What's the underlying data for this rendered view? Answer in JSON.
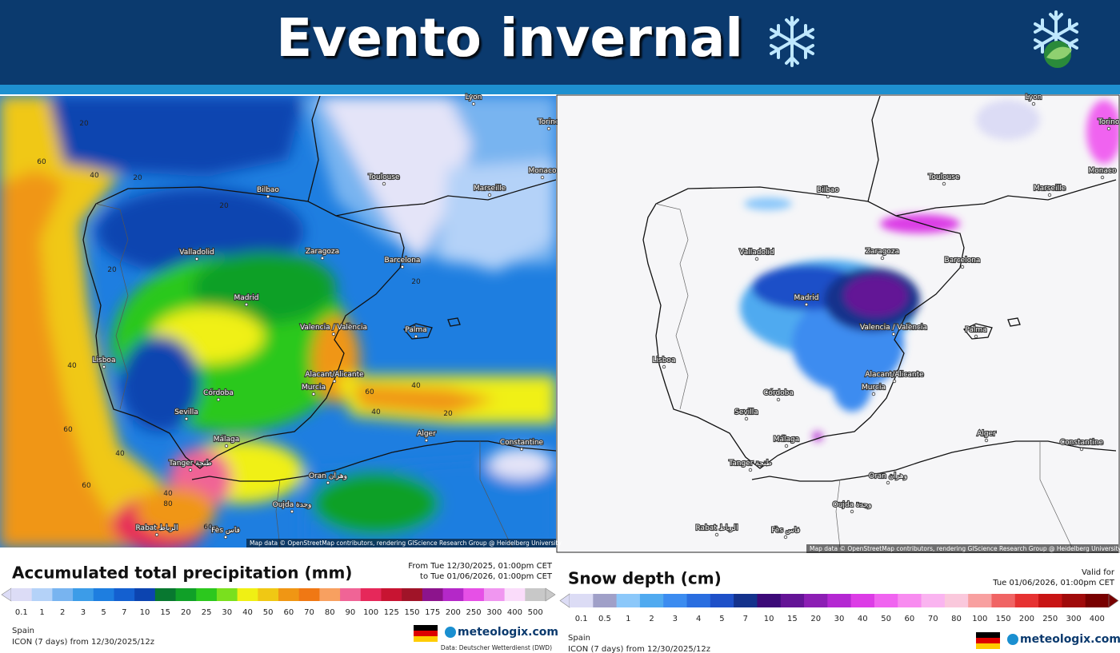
{
  "header": {
    "title": "Evento invernal"
  },
  "maps": [
    {
      "cities": [
        "Lyon",
        "Torino",
        "Toulouse",
        "Monaco",
        "Marseille",
        "Bilbao",
        "Valladolid",
        "Zaragoza",
        "Barcelona",
        "Madrid",
        "Palma",
        "Valencia / València",
        "Lisboa",
        "Alacant/Alicante",
        "Murcia",
        "Córdoba",
        "Sevilla",
        "Málaga",
        "Alger",
        "Constantine",
        "Tanger طنجة",
        "Oran وهران",
        "Oujda وجدة",
        "Rabat الرباط",
        "Fès فاس"
      ],
      "contours": [
        "20",
        "20",
        "40",
        "60",
        "20",
        "20",
        "40",
        "60",
        "40",
        "60",
        "40",
        "20",
        "40",
        "60",
        "80",
        "60",
        "40",
        "20"
      ],
      "credit": "Map data © OpenStreetMap contributors, rendering GIScience Research Group @ Heidelberg University",
      "legend": {
        "title": "Accumulated total precipitation (mm)",
        "time_from": "From Tue 12/30/2025, 01:00pm CET",
        "time_to": "to Tue 01/06/2026, 01:00pm CET",
        "scale": [
          0.1,
          1,
          2,
          3,
          5,
          7,
          10,
          15,
          20,
          25,
          30,
          40,
          50,
          60,
          70,
          80,
          90,
          100,
          125,
          150,
          175,
          200,
          250,
          300,
          400,
          500
        ],
        "colors": [
          "#dcdcf6",
          "#b4d2f8",
          "#78b4f0",
          "#3c9ce8",
          "#1e7ee0",
          "#1460d0",
          "#0c44b0",
          "#087830",
          "#10a028",
          "#2cc81e",
          "#7ae01e",
          "#f0f014",
          "#f0c814",
          "#f09614",
          "#f07814",
          "#f8a060",
          "#f06496",
          "#e6285a",
          "#c81432",
          "#a01428",
          "#8c148c",
          "#b428c8",
          "#e650e6",
          "#f096f0",
          "#fadcfa",
          "#c8c8c8"
        ],
        "region": "Spain",
        "model": "ICON (7 days) from 12/30/2025/12z",
        "brand": "meteologix.com",
        "source": "Data: Deutscher Wetterdienst (DWD)"
      }
    },
    {
      "cities": [
        "Lyon",
        "Torino",
        "Toulouse",
        "Monaco",
        "Marseille",
        "Bilbao",
        "Valladolid",
        "Zaragoza",
        "Barcelona",
        "Madrid",
        "Palma",
        "Valencia / València",
        "Lisboa",
        "Alacant/Alicante",
        "Murcia",
        "Córdoba",
        "Sevilla",
        "Málaga",
        "Alger",
        "Constantine",
        "Tanger طنجة",
        "Oran وهران",
        "Oujda وجدة",
        "Rabat الرباط",
        "Fès فاس"
      ],
      "credit": "Map data © OpenStreetMap contributors, rendering GIScience Research Group @ Heidelberg University",
      "legend": {
        "title": "Snow depth (cm)",
        "valid_label": "Valid for",
        "valid_time": "Tue 01/06/2026, 01:00pm CET",
        "scale": [
          0.1,
          0.5,
          1,
          2,
          3,
          4,
          5,
          7,
          10,
          15,
          20,
          30,
          40,
          50,
          60,
          70,
          80,
          100,
          150,
          200,
          250,
          300,
          400
        ],
        "colors": [
          "#dcdcf5",
          "#a0a0c8",
          "#8cc8fa",
          "#50aaf0",
          "#3c8cf0",
          "#2a6ee0",
          "#1e50c8",
          "#14328c",
          "#3c0a78",
          "#641496",
          "#8c1eb4",
          "#b428d2",
          "#dc3ce6",
          "#f064f0",
          "#f88cf0",
          "#fab4f0",
          "#fac8dc",
          "#f8a0a0",
          "#f06464",
          "#e63232",
          "#c81414",
          "#a00a0a",
          "#780000"
        ],
        "region": "Spain",
        "model": "ICON (7 days) from 12/30/2025/12z",
        "brand": "meteologix.com"
      }
    }
  ]
}
